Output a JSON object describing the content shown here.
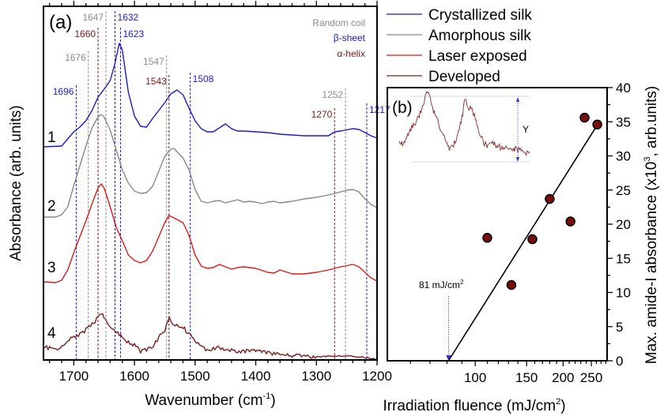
{
  "chart_data": [
    {
      "type": "line",
      "panel_label": "(a)",
      "xlabel": "Wavenumber (cm",
      "xlabel_sup": "-1",
      "xlabel_end": ")",
      "ylabel": "Absorbance (arb. units)",
      "xlim": [
        1750,
        1200
      ],
      "ylim": [
        0,
        448
      ],
      "xticks": [
        "1700",
        "1600",
        "1500",
        "1400",
        "1300",
        "1200"
      ],
      "xtick_values": [
        1700,
        1600,
        1500,
        1400,
        1300,
        1200
      ],
      "legend": {
        "placement": "top-right outside",
        "entries": [
          "Crystallized silk",
          "Amorphous silk",
          "Laser exposed",
          "Developed"
        ]
      },
      "category_key": {
        "entries": [
          {
            "label": "Random coil",
            "color": "#8c8c8c"
          },
          {
            "label": "β-sheet",
            "color": "#1c1ccc"
          },
          {
            "label": "α-helix",
            "color": "#7a1a1a"
          }
        ]
      },
      "series": [
        {
          "name": "Crystallized silk",
          "curve_label": "1",
          "color": "#1a1ac8",
          "x": [
            1750,
            1720,
            1700,
            1690,
            1680,
            1670,
            1660,
            1650,
            1640,
            1632,
            1625,
            1620,
            1610,
            1600,
            1590,
            1580,
            1570,
            1560,
            1550,
            1540,
            1530,
            1520,
            1510,
            1500,
            1490,
            1480,
            1470,
            1460,
            1450,
            1440,
            1430,
            1420,
            1400,
            1380,
            1360,
            1340,
            1320,
            1300,
            1280,
            1270,
            1260,
            1240,
            1230,
            1220,
            1210,
            1200
          ],
          "y": [
            270,
            271,
            289,
            295,
            303,
            316,
            333,
            343,
            354,
            376,
            401,
            393,
            339,
            309,
            296,
            295,
            306,
            316,
            326,
            337,
            342,
            336,
            319,
            303,
            293,
            289,
            289,
            294,
            299,
            293,
            290,
            290,
            289,
            288,
            286,
            285,
            284,
            284,
            284,
            289,
            290,
            293,
            292,
            288,
            284,
            281
          ]
        },
        {
          "name": "Amorphous silk",
          "curve_label": "2",
          "color": "#888888",
          "x": [
            1750,
            1730,
            1720,
            1710,
            1700,
            1690,
            1680,
            1670,
            1660,
            1655,
            1650,
            1640,
            1630,
            1620,
            1610,
            1600,
            1590,
            1580,
            1570,
            1560,
            1550,
            1540,
            1535,
            1530,
            1520,
            1510,
            1500,
            1490,
            1480,
            1470,
            1460,
            1450,
            1440,
            1430,
            1420,
            1410,
            1400,
            1390,
            1380,
            1370,
            1360,
            1340,
            1320,
            1300,
            1280,
            1260,
            1250,
            1240,
            1230,
            1220,
            1210,
            1200
          ],
          "y": [
            181,
            181,
            184,
            194,
            221,
            246,
            271,
            294,
            308,
            311,
            308,
            291,
            266,
            241,
            224,
            214,
            211,
            212,
            220,
            239,
            258,
            267,
            268,
            264,
            256,
            241,
            216,
            201,
            199,
            201,
            202,
            199,
            201,
            203,
            200,
            201,
            200,
            198,
            200,
            201,
            199,
            201,
            204,
            206,
            209,
            213,
            215,
            216,
            213,
            204,
            197,
            193
          ]
        },
        {
          "name": "Laser exposed",
          "curve_label": "3",
          "color": "#e01818",
          "x": [
            1750,
            1730,
            1720,
            1710,
            1700,
            1690,
            1680,
            1670,
            1660,
            1655,
            1650,
            1640,
            1630,
            1620,
            1610,
            1600,
            1590,
            1580,
            1570,
            1560,
            1550,
            1543,
            1530,
            1520,
            1510,
            1500,
            1490,
            1480,
            1470,
            1460,
            1450,
            1440,
            1430,
            1420,
            1400,
            1380,
            1370,
            1360,
            1340,
            1320,
            1300,
            1280,
            1260,
            1240,
            1230,
            1220,
            1210,
            1200
          ],
          "y": [
            99,
            98,
            101,
            114,
            136,
            156,
            176,
            198,
            218,
            223,
            218,
            194,
            168,
            151,
            133,
            126,
            123,
            126,
            138,
            156,
            174,
            183,
            178,
            174,
            158,
            133,
            119,
            116,
            117,
            121,
            118,
            115,
            117,
            118,
            116,
            111,
            110,
            114,
            109,
            109,
            111,
            114,
            118,
            121,
            118,
            111,
            104,
            100
          ]
        },
        {
          "name": "Developed",
          "curve_label": "4",
          "color": "#7a1e1e",
          "x": [
            1750,
            1730,
            1720,
            1710,
            1700,
            1690,
            1680,
            1670,
            1660,
            1655,
            1650,
            1640,
            1630,
            1620,
            1610,
            1600,
            1590,
            1580,
            1570,
            1560,
            1550,
            1543,
            1535,
            1530,
            1520,
            1510,
            1500,
            1490,
            1480,
            1470,
            1460,
            1450,
            1440,
            1420,
            1400,
            1380,
            1350,
            1300,
            1280,
            1250,
            1230,
            1210,
            1200
          ],
          "y": [
            16,
            14,
            18,
            24,
            29,
            33,
            38,
            45,
            54,
            59,
            55,
            43,
            36,
            30,
            22,
            19,
            11,
            13,
            18,
            28,
            38,
            53,
            44,
            44,
            42,
            33,
            24,
            17,
            13,
            14,
            16,
            13,
            12,
            11,
            11,
            9,
            6,
            4,
            5,
            5,
            4,
            2,
            1
          ]
        }
      ],
      "peak_markers": [
        {
          "label": "1696",
          "x": 1696,
          "type": "β-sheet"
        },
        {
          "label": "1676",
          "x": 1676,
          "type": "Random coil"
        },
        {
          "label": "1660",
          "x": 1660,
          "type": "α-helix"
        },
        {
          "label": "1647",
          "x": 1647,
          "type": "Random coil"
        },
        {
          "label": "1632",
          "x": 1632,
          "type": "β-sheet"
        },
        {
          "label": "1623",
          "x": 1623,
          "type": "β-sheet"
        },
        {
          "label": "1547",
          "x": 1547,
          "type": "Random coil"
        },
        {
          "label": "1543",
          "x": 1543,
          "type": "α-helix"
        },
        {
          "label": "1508",
          "x": 1508,
          "type": "β-sheet"
        },
        {
          "label": "1270",
          "x": 1270,
          "type": "α-helix"
        },
        {
          "label": "1252",
          "x": 1252,
          "type": "Random coil"
        },
        {
          "label": "1217",
          "x": 1217,
          "type": "β-sheet"
        }
      ]
    },
    {
      "type": "scatter",
      "panel_label": "(b)",
      "xlabel": "Irradiation fluence (mJ/cm",
      "xlabel_sup": "2",
      "xlabel_end": ")",
      "ylabel": "Max. amide-I absorbance (x10",
      "ylabel_sup": "3",
      "ylabel_end": ", arb.units)",
      "xscale": "log",
      "xlim": [
        50,
        283
      ],
      "ylim": [
        0,
        40
      ],
      "xticks": [
        "100",
        "150",
        "200",
        "250"
      ],
      "xtick_values": [
        100,
        150,
        200,
        250
      ],
      "yticks": [
        "0",
        "5",
        "10",
        "15",
        "20",
        "25",
        "30",
        "35",
        "40"
      ],
      "ytick_values": [
        0,
        5,
        10,
        15,
        20,
        25,
        30,
        35,
        40
      ],
      "points": {
        "x": [
          110,
          133,
          157,
          180,
          212,
          237,
          262
        ],
        "y": [
          18.0,
          11.1,
          17.8,
          23.7,
          20.4,
          35.6,
          34.6
        ],
        "color": "#7a0c0c"
      },
      "fit_line": {
        "x": [
          81,
          268
        ],
        "y": [
          0,
          35.2
        ]
      },
      "threshold": {
        "value": 81,
        "label": "81 mJ/cm",
        "label_sup": "2"
      },
      "inset": {
        "label": "Y",
        "series": "Developed"
      }
    }
  ]
}
